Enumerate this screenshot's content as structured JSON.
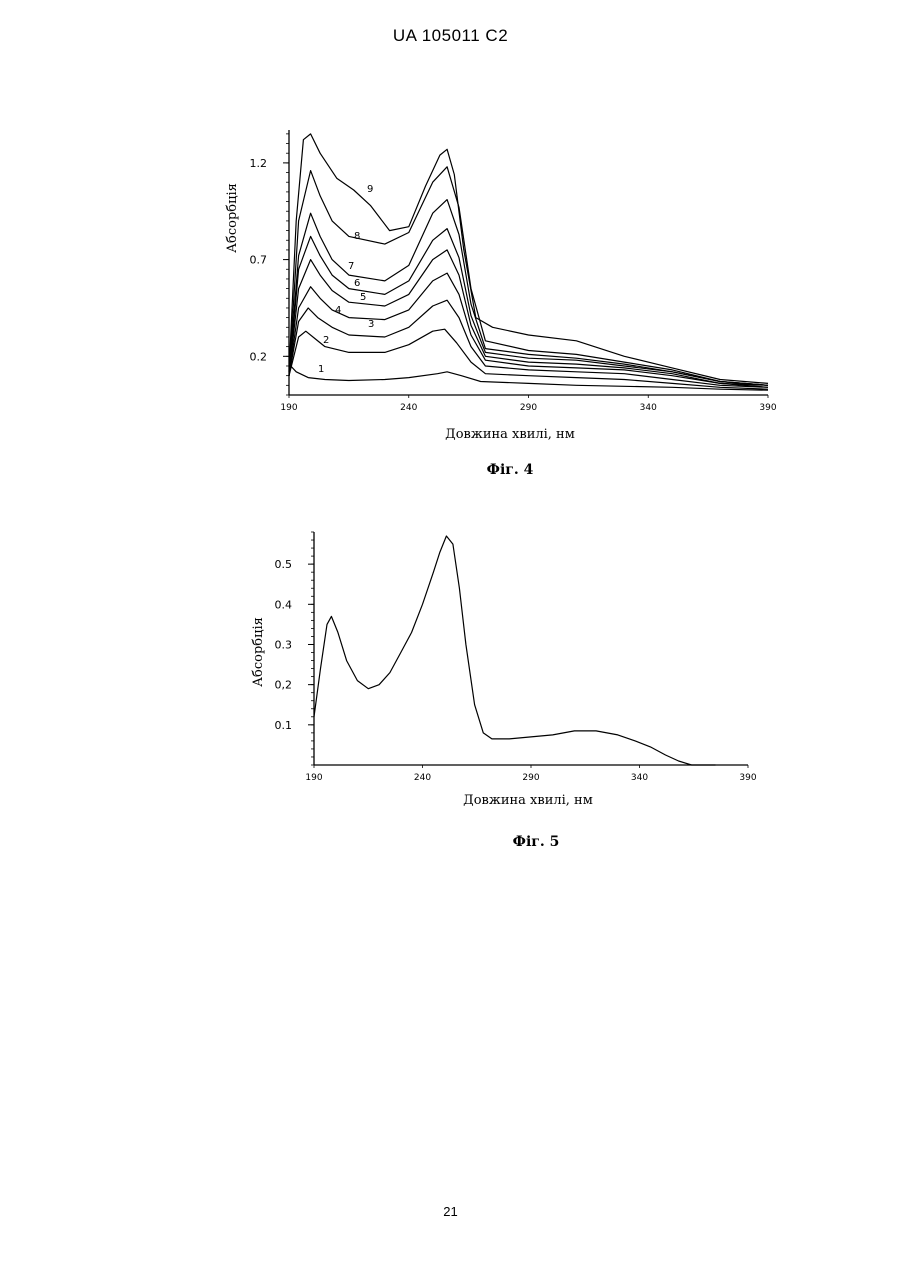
{
  "document": {
    "header": "UA   105011   C2",
    "page_number": "21"
  },
  "chart_data": [
    {
      "type": "line",
      "caption": "Фіг. 4",
      "xlabel": "Довжина хвилі, нм",
      "ylabel": "Абсорбція",
      "xlim": [
        190,
        390
      ],
      "ylim": [
        0.0,
        1.37
      ],
      "x_ticks": [
        "190",
        "240",
        "290",
        "340",
        "390"
      ],
      "x_tick_values": [
        190,
        240,
        290,
        340,
        390
      ],
      "y_ticks": [
        "0.2",
        "0.7",
        "1.2"
      ],
      "y_tick_values": [
        0.2,
        0.7,
        1.2
      ],
      "series": [
        {
          "name": "1",
          "x": [
            190,
            193,
            198,
            205,
            215,
            230,
            240,
            252,
            256,
            262,
            270,
            290,
            310,
            330,
            350,
            370,
            390
          ],
          "y": [
            0.16,
            0.12,
            0.09,
            0.08,
            0.075,
            0.08,
            0.09,
            0.11,
            0.12,
            0.1,
            0.07,
            0.06,
            0.05,
            0.045,
            0.04,
            0.03,
            0.025
          ]
        },
        {
          "name": "2",
          "x": [
            190,
            194,
            197,
            201,
            205,
            215,
            230,
            240,
            250,
            255,
            260,
            266,
            272,
            290,
            310,
            330,
            350,
            370,
            390
          ],
          "y": [
            0.1,
            0.3,
            0.33,
            0.29,
            0.25,
            0.22,
            0.22,
            0.26,
            0.33,
            0.34,
            0.27,
            0.17,
            0.11,
            0.1,
            0.09,
            0.08,
            0.06,
            0.04,
            0.03
          ]
        },
        {
          "name": "3",
          "x": [
            190,
            194,
            198,
            202,
            208,
            215,
            230,
            240,
            250,
            256,
            261,
            266,
            272,
            290,
            310,
            330,
            350,
            370,
            390
          ],
          "y": [
            0.1,
            0.38,
            0.45,
            0.4,
            0.35,
            0.31,
            0.3,
            0.35,
            0.46,
            0.49,
            0.4,
            0.25,
            0.15,
            0.13,
            0.12,
            0.11,
            0.08,
            0.05,
            0.04
          ]
        },
        {
          "name": "4",
          "x": [
            190,
            194,
            199,
            203,
            208,
            215,
            230,
            240,
            250,
            256,
            261,
            266,
            272,
            290,
            310,
            330,
            350,
            370,
            390
          ],
          "y": [
            0.1,
            0.45,
            0.56,
            0.5,
            0.44,
            0.4,
            0.39,
            0.44,
            0.59,
            0.63,
            0.52,
            0.31,
            0.18,
            0.15,
            0.14,
            0.13,
            0.1,
            0.06,
            0.04
          ]
        },
        {
          "name": "5",
          "x": [
            190,
            194,
            199,
            203,
            208,
            215,
            230,
            240,
            250,
            256,
            261,
            266,
            272,
            290,
            310,
            330,
            350,
            370,
            390
          ],
          "y": [
            0.1,
            0.55,
            0.7,
            0.62,
            0.54,
            0.48,
            0.46,
            0.52,
            0.7,
            0.75,
            0.62,
            0.36,
            0.2,
            0.17,
            0.16,
            0.14,
            0.11,
            0.06,
            0.05
          ]
        },
        {
          "name": "6",
          "x": [
            190,
            194,
            199,
            203,
            208,
            215,
            230,
            240,
            250,
            256,
            261,
            266,
            272,
            290,
            310,
            330,
            350,
            370,
            390
          ],
          "y": [
            0.1,
            0.65,
            0.82,
            0.72,
            0.62,
            0.55,
            0.52,
            0.59,
            0.8,
            0.86,
            0.71,
            0.41,
            0.22,
            0.19,
            0.18,
            0.15,
            0.12,
            0.07,
            0.05
          ]
        },
        {
          "name": "7",
          "x": [
            190,
            194,
            199,
            203,
            208,
            215,
            230,
            240,
            250,
            256,
            261,
            266,
            272,
            290,
            310,
            330,
            350,
            370,
            390
          ],
          "y": [
            0.1,
            0.72,
            0.94,
            0.82,
            0.7,
            0.62,
            0.59,
            0.67,
            0.94,
            1.01,
            0.83,
            0.47,
            0.24,
            0.21,
            0.19,
            0.16,
            0.12,
            0.07,
            0.05
          ]
        },
        {
          "name": "8",
          "x": [
            190,
            194,
            199,
            203,
            208,
            215,
            230,
            240,
            250,
            256,
            261,
            266,
            272,
            290,
            310,
            330,
            350,
            370,
            390
          ],
          "y": [
            0.1,
            0.9,
            1.16,
            1.03,
            0.9,
            0.82,
            0.78,
            0.84,
            1.1,
            1.18,
            0.97,
            0.55,
            0.28,
            0.23,
            0.21,
            0.17,
            0.13,
            0.07,
            0.05
          ]
        },
        {
          "name": "9",
          "x": [
            190,
            193,
            196,
            199,
            203,
            210,
            217,
            224,
            232,
            240,
            247,
            253,
            256,
            259,
            263,
            268,
            275,
            290,
            310,
            330,
            350,
            370,
            390
          ],
          "y": [
            0.12,
            0.9,
            1.32,
            1.35,
            1.25,
            1.12,
            1.06,
            0.98,
            0.85,
            0.87,
            1.08,
            1.24,
            1.27,
            1.14,
            0.75,
            0.4,
            0.35,
            0.31,
            0.28,
            0.2,
            0.14,
            0.08,
            0.06
          ]
        }
      ]
    },
    {
      "type": "line",
      "caption": "Фіг. 5",
      "xlabel": "Довжина хвилі, нм",
      "ylabel": "Абсорбція",
      "xlim": [
        190,
        390
      ],
      "ylim": [
        0.0,
        0.58
      ],
      "x_ticks": [
        "190",
        "240",
        "290",
        "340",
        "390"
      ],
      "x_tick_values": [
        190,
        240,
        290,
        340,
        390
      ],
      "y_ticks": [
        "0.1",
        "0,2",
        "0.3",
        "0.4",
        "0.5"
      ],
      "y_tick_values": [
        0.1,
        0.2,
        0.3,
        0.4,
        0.5
      ],
      "series": [
        {
          "name": "",
          "x": [
            190,
            193,
            196,
            198,
            201,
            205,
            210,
            215,
            220,
            225,
            230,
            235,
            240,
            245,
            248,
            251,
            254,
            257,
            260,
            264,
            268,
            272,
            280,
            290,
            300,
            310,
            320,
            330,
            338,
            345,
            352,
            358,
            364,
            370,
            375
          ],
          "y": [
            0.12,
            0.24,
            0.35,
            0.37,
            0.33,
            0.26,
            0.21,
            0.19,
            0.2,
            0.23,
            0.28,
            0.33,
            0.4,
            0.48,
            0.53,
            0.57,
            0.55,
            0.44,
            0.3,
            0.15,
            0.08,
            0.065,
            0.065,
            0.07,
            0.075,
            0.085,
            0.085,
            0.075,
            0.06,
            0.045,
            0.025,
            0.01,
            0.0,
            0.0,
            0.0
          ]
        }
      ]
    }
  ]
}
